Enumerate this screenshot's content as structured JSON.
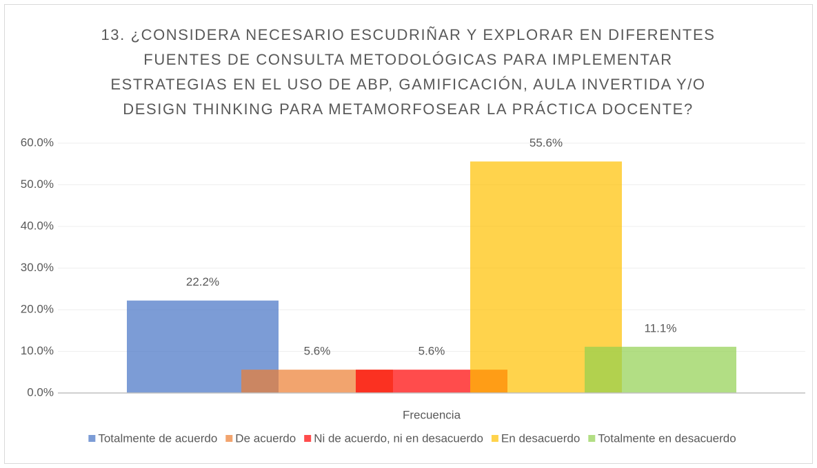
{
  "chart_data": {
    "type": "bar",
    "title": [
      "13. ¿CONSIDERA NECESARIO ESCUDRIÑAR Y EXPLORAR EN DIFERENTES",
      "FUENTES DE CONSULTA METODOLÓGICAS PARA IMPLEMENTAR",
      "ESTRATEGIAS EN EL USO DE ABP, GAMIFICACIÓN, AULA INVERTIDA Y/O",
      "DESIGN THINKING PARA METAMORFOSEAR LA PRÁCTICA DOCENTE?"
    ],
    "categories": [
      "Frecuencia"
    ],
    "series": [
      {
        "name": "Totalmente de acuerdo",
        "color": "#4472c4",
        "values": [
          22.2
        ],
        "value_labels": [
          "22.2%"
        ]
      },
      {
        "name": "De acuerdo",
        "color": "#ed7d31",
        "values": [
          5.6
        ],
        "value_labels": [
          "5.6%"
        ]
      },
      {
        "name": "Ni de acuerdo, ni en desacuerdo",
        "color": "#ff0000",
        "values": [
          5.6
        ],
        "value_labels": [
          "5.6%"
        ]
      },
      {
        "name": "En desacuerdo",
        "color": "#ffc000",
        "values": [
          55.6
        ],
        "value_labels": [
          "55.6%"
        ]
      },
      {
        "name": "Totalmente en desacuerdo",
        "color": "#92d050",
        "values": [
          11.1
        ],
        "value_labels": [
          "11.1%"
        ]
      }
    ],
    "ylim": [
      0,
      60
    ],
    "yticks": [
      {
        "value": 0,
        "label": "0.0%"
      },
      {
        "value": 10,
        "label": "10.0%"
      },
      {
        "value": 20,
        "label": "20.0%"
      },
      {
        "value": 30,
        "label": "30.0%"
      },
      {
        "value": 40,
        "label": "40.0%"
      },
      {
        "value": 50,
        "label": "50.0%"
      },
      {
        "value": 60,
        "label": "60.0%"
      }
    ],
    "grid": true,
    "legend": "bottom"
  }
}
